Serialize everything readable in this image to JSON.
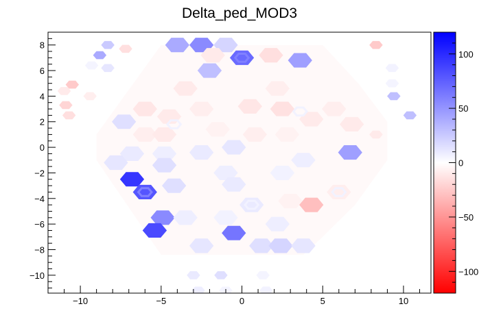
{
  "chart_data": {
    "type": "heatmap",
    "subtype": "hexagonal-bin map",
    "title": "Delta_ped_MOD3",
    "xlim": [
      -12,
      11.7
    ],
    "ylim": [
      -11.4,
      9.0
    ],
    "x_ticks": [
      -10,
      -5,
      0,
      5,
      10
    ],
    "x_tick_labels": [
      "−10",
      "−5",
      "0",
      "5",
      "10"
    ],
    "y_ticks": [
      8,
      6,
      4,
      2,
      0,
      -2,
      -4,
      -6,
      -8,
      -10
    ],
    "y_tick_labels": [
      "8",
      "6",
      "4",
      "2",
      "0",
      "−2",
      "−4",
      "−6",
      "−8",
      "−10"
    ],
    "colorbar": {
      "range": [
        -120,
        120
      ],
      "ticks": [
        100,
        50,
        0,
        -50,
        -100
      ],
      "tick_labels": [
        "100",
        "50",
        "0",
        "−50",
        "−100"
      ],
      "color_min": "#ff0000",
      "color_mid": "#ffffff",
      "color_max": "#0000ff"
    },
    "hexagon_radius": 0.75,
    "cells": [
      {
        "x": -4.0,
        "y": 8.0,
        "v": 40
      },
      {
        "x": -2.5,
        "y": 8.0,
        "v": 55
      },
      {
        "x": -1.0,
        "y": 8.0,
        "v": 20
      },
      {
        "x": 0.0,
        "y": 7.0,
        "v": 70
      },
      {
        "x": -1.8,
        "y": 7.2,
        "v": -10
      },
      {
        "x": 1.8,
        "y": 7.2,
        "v": -15
      },
      {
        "x": 3.6,
        "y": 6.8,
        "v": 45
      },
      {
        "x": -2.0,
        "y": 6.0,
        "v": 30
      },
      {
        "x": -3.5,
        "y": 4.6,
        "v": -10
      },
      {
        "x": 2.2,
        "y": 4.6,
        "v": -8
      },
      {
        "x": -6.0,
        "y": 3.0,
        "v": -12
      },
      {
        "x": -7.3,
        "y": 2.0,
        "v": 15
      },
      {
        "x": -4.5,
        "y": 2.4,
        "v": -10
      },
      {
        "x": -2.5,
        "y": 3.0,
        "v": -8
      },
      {
        "x": 0.5,
        "y": 3.2,
        "v": -12
      },
      {
        "x": 2.5,
        "y": 3.0,
        "v": -14
      },
      {
        "x": 4.3,
        "y": 2.2,
        "v": -10
      },
      {
        "x": 5.7,
        "y": 3.0,
        "v": -8
      },
      {
        "x": -6.0,
        "y": 1.0,
        "v": -8
      },
      {
        "x": -4.8,
        "y": 1.0,
        "v": -10
      },
      {
        "x": -1.5,
        "y": 1.4,
        "v": -6
      },
      {
        "x": 0.8,
        "y": 1.0,
        "v": -8
      },
      {
        "x": 2.8,
        "y": 1.0,
        "v": -6
      },
      {
        "x": 6.8,
        "y": 1.8,
        "v": -10
      },
      {
        "x": -6.8,
        "y": -0.5,
        "v": 10
      },
      {
        "x": -4.8,
        "y": -0.5,
        "v": 8
      },
      {
        "x": -2.5,
        "y": -0.4,
        "v": 10
      },
      {
        "x": -0.5,
        "y": 0.0,
        "v": 12
      },
      {
        "x": 3.8,
        "y": -1.0,
        "v": 8
      },
      {
        "x": 6.7,
        "y": -0.4,
        "v": 45
      },
      {
        "x": -7.8,
        "y": -1.2,
        "v": 12
      },
      {
        "x": -4.8,
        "y": -1.4,
        "v": 15
      },
      {
        "x": -1.0,
        "y": -2.0,
        "v": 8
      },
      {
        "x": 2.5,
        "y": -2.0,
        "v": 6
      },
      {
        "x": -6.8,
        "y": -2.5,
        "v": 95
      },
      {
        "x": -6.0,
        "y": -3.5,
        "v": 80
      },
      {
        "x": -4.2,
        "y": -3.0,
        "v": 15
      },
      {
        "x": -0.5,
        "y": -2.9,
        "v": 10
      },
      {
        "x": 0.6,
        "y": -4.5,
        "v": 10
      },
      {
        "x": 3.0,
        "y": -4.2,
        "v": -6
      },
      {
        "x": 6.0,
        "y": -3.5,
        "v": -8
      },
      {
        "x": 4.3,
        "y": -4.5,
        "v": -30
      },
      {
        "x": -4.9,
        "y": -5.5,
        "v": 55
      },
      {
        "x": -3.5,
        "y": -5.5,
        "v": 8
      },
      {
        "x": -1.0,
        "y": -5.5,
        "v": 6
      },
      {
        "x": 2.2,
        "y": -6.0,
        "v": 8
      },
      {
        "x": -5.4,
        "y": -6.5,
        "v": 85
      },
      {
        "x": -0.5,
        "y": -6.7,
        "v": 65
      },
      {
        "x": -2.5,
        "y": -7.7,
        "v": 12
      },
      {
        "x": 1.2,
        "y": -7.7,
        "v": 15
      },
      {
        "x": 2.4,
        "y": -7.7,
        "v": 20
      },
      {
        "x": 3.8,
        "y": -7.7,
        "v": 12
      }
    ],
    "rings": [
      {
        "x": 0.0,
        "y": 7.0,
        "v": 60
      },
      {
        "x": -6.0,
        "y": -3.5,
        "v": 60
      },
      {
        "x": -4.2,
        "y": 1.8,
        "v": 6
      },
      {
        "x": 3.6,
        "y": 2.8,
        "v": 6
      },
      {
        "x": 6.0,
        "y": -3.5,
        "v": 6
      },
      {
        "x": 0.6,
        "y": -4.5,
        "v": 6
      }
    ],
    "outer_cells": [
      {
        "x": -8.3,
        "y": 8.0,
        "v": 25
      },
      {
        "x": -7.2,
        "y": 7.7,
        "v": -15
      },
      {
        "x": -8.8,
        "y": 7.2,
        "v": 40
      },
      {
        "x": -9.3,
        "y": 6.4,
        "v": 5
      },
      {
        "x": -8.3,
        "y": 6.2,
        "v": 12
      },
      {
        "x": -10.5,
        "y": 4.9,
        "v": -25
      },
      {
        "x": -11.0,
        "y": 4.4,
        "v": -10
      },
      {
        "x": -9.4,
        "y": 4.0,
        "v": -8
      },
      {
        "x": -10.9,
        "y": 3.3,
        "v": -20
      },
      {
        "x": -10.7,
        "y": 2.5,
        "v": -15
      },
      {
        "x": 8.3,
        "y": 8.0,
        "v": -25
      },
      {
        "x": 9.3,
        "y": 6.2,
        "v": 6
      },
      {
        "x": 9.3,
        "y": 5.0,
        "v": 5
      },
      {
        "x": 9.4,
        "y": 4.0,
        "v": 30
      },
      {
        "x": 10.4,
        "y": 2.5,
        "v": 30
      },
      {
        "x": 8.3,
        "y": 1.0,
        "v": -10
      },
      {
        "x": -3.0,
        "y": -10.0,
        "v": 10
      },
      {
        "x": -1.3,
        "y": -10.0,
        "v": 15
      },
      {
        "x": 1.3,
        "y": -10.0,
        "v": 5
      },
      {
        "x": -2.7,
        "y": -11.2,
        "v": 8
      },
      {
        "x": -1.0,
        "y": -11.2,
        "v": 5
      },
      {
        "x": 1.5,
        "y": -11.2,
        "v": 6
      }
    ],
    "base_region_value": -3,
    "base_region_polygon": [
      [
        -5.0,
        8.0
      ],
      [
        5.0,
        8.0
      ],
      [
        7.2,
        5.0
      ],
      [
        9.0,
        2.0
      ],
      [
        9.0,
        -1.0
      ],
      [
        7.0,
        -4.5
      ],
      [
        5.0,
        -7.0
      ],
      [
        3.8,
        -8.4
      ],
      [
        -5.0,
        -8.4
      ],
      [
        -9.0,
        -1.0
      ],
      [
        -9.0,
        1.0
      ]
    ]
  }
}
